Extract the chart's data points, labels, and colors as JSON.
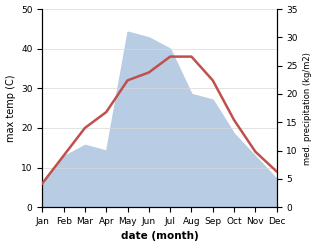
{
  "months": [
    "Jan",
    "Feb",
    "Mar",
    "Apr",
    "May",
    "Jun",
    "Jul",
    "Aug",
    "Sep",
    "Oct",
    "Nov",
    "Dec"
  ],
  "month_indices": [
    1,
    2,
    3,
    4,
    5,
    6,
    7,
    8,
    9,
    10,
    11,
    12
  ],
  "temperature": [
    6,
    13,
    20,
    24,
    32,
    34,
    38,
    38,
    32,
    22,
    14,
    9
  ],
  "precipitation": [
    4,
    9,
    11,
    10,
    31,
    30,
    28,
    20,
    19,
    13,
    9,
    5
  ],
  "temp_color": "#c0504d",
  "precip_fill_color": "#b8cce4",
  "temp_ylim": [
    0,
    50
  ],
  "precip_ylim": [
    0,
    35
  ],
  "temp_yticks": [
    0,
    10,
    20,
    30,
    40,
    50
  ],
  "precip_yticks": [
    0,
    5,
    10,
    15,
    20,
    25,
    30,
    35
  ],
  "xlabel": "date (month)",
  "ylabel_left": "max temp (C)",
  "ylabel_right": "med. precipitation (kg/m2)",
  "background_color": "#ffffff",
  "grid_color": "#d8d8d8"
}
